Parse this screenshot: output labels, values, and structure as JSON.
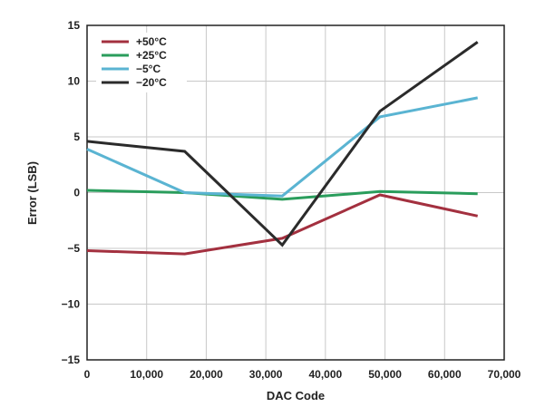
{
  "chart_data": {
    "type": "line",
    "title": "",
    "xlabel": "DAC Code",
    "ylabel": "Error (LSB)",
    "xlim": [
      0,
      70000
    ],
    "ylim": [
      -15,
      15
    ],
    "xticks": [
      0,
      10000,
      20000,
      30000,
      40000,
      50000,
      60000,
      70000
    ],
    "xtick_labels": [
      "0",
      "10,000",
      "20,000",
      "30,000",
      "40,000",
      "50,000",
      "60,000",
      "70,000"
    ],
    "yticks": [
      -15,
      -10,
      -5,
      0,
      5,
      10,
      15
    ],
    "ytick_labels": [
      "−15",
      "−10",
      "−5",
      "0",
      "5",
      "10",
      "15"
    ],
    "grid": true,
    "legend_position": "top-left",
    "series": [
      {
        "name": "+50°C",
        "color": "#a3303f",
        "x": [
          0,
          16384,
          32768,
          49152,
          65535
        ],
        "y": [
          -5.2,
          -5.5,
          -4.1,
          -0.2,
          -2.1
        ]
      },
      {
        "name": "+25°C",
        "color": "#2a9d5c",
        "x": [
          0,
          16384,
          32768,
          49152,
          65535
        ],
        "y": [
          0.2,
          0.0,
          -0.6,
          0.1,
          -0.1
        ]
      },
      {
        "name": "−5°C",
        "color": "#5ab4d2",
        "x": [
          0,
          16384,
          32768,
          49152,
          65535
        ],
        "y": [
          3.9,
          0.0,
          -0.3,
          6.8,
          8.5
        ]
      },
      {
        "name": "−20°C",
        "color": "#2b2b2b",
        "x": [
          0,
          16384,
          32768,
          49152,
          65535
        ],
        "y": [
          4.6,
          3.7,
          -4.7,
          7.3,
          13.5
        ]
      }
    ]
  }
}
